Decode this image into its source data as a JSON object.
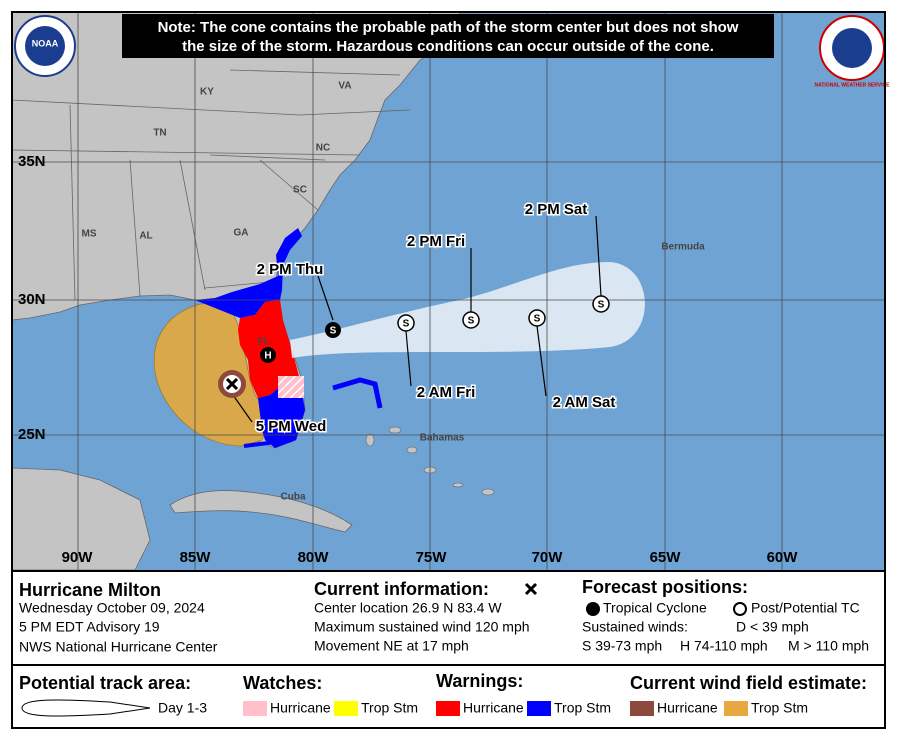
{
  "note": [
    "Note: The cone contains the probable path of the storm center but does not show",
    "the size of the storm. Hazardous conditions can occur outside of the cone."
  ],
  "logos": {
    "noaa": "NOAA",
    "nws": "NATIONAL WEATHER SERVICE"
  },
  "map": {
    "latitude_labels": [
      "35N",
      "30N",
      "25N"
    ],
    "longitude_labels": [
      "90W",
      "85W",
      "80W",
      "75W",
      "70W",
      "65W",
      "60W"
    ],
    "places": [
      "KY",
      "VA",
      "TN",
      "NC",
      "SC",
      "MS",
      "AL",
      "GA",
      "FL",
      "Bermuda",
      "Bahamas",
      "Cuba"
    ],
    "forecast_times": [
      "2 PM Thu",
      "2 PM Fri",
      "2 PM Sat",
      "2 AM Fri",
      "2 AM Sat",
      "5 PM Wed"
    ],
    "symbols": {
      "tropical_storm": "S",
      "hurricane": "H"
    }
  },
  "info": {
    "storm": "Hurricane Milton",
    "date": "Wednesday October 09, 2024",
    "advisory": "5 PM EDT Advisory 19",
    "office": "NWS National Hurricane Center"
  },
  "current": {
    "title": "Current information:",
    "lines": [
      "Center location 26.9 N 83.4 W",
      "Maximum sustained wind 120 mph",
      "Movement NE at 17 mph"
    ]
  },
  "forecast": {
    "title": "Forecast positions:",
    "tropical_cyclone": "Tropical Cyclone",
    "post_tc": "Post/Potential TC",
    "sustained": "Sustained winds:",
    "d": "D < 39 mph",
    "s": "S 39-73 mph",
    "h": "H 74-110 mph",
    "m": "M > 110 mph"
  },
  "legend": {
    "track_title": "Potential track area:",
    "day": "Day 1-3",
    "watches": "Watches:",
    "warnings": "Warnings:",
    "wind": "Current wind field estimate:",
    "hurricane": "Hurricane",
    "trop_stm": "Trop Stm"
  }
}
